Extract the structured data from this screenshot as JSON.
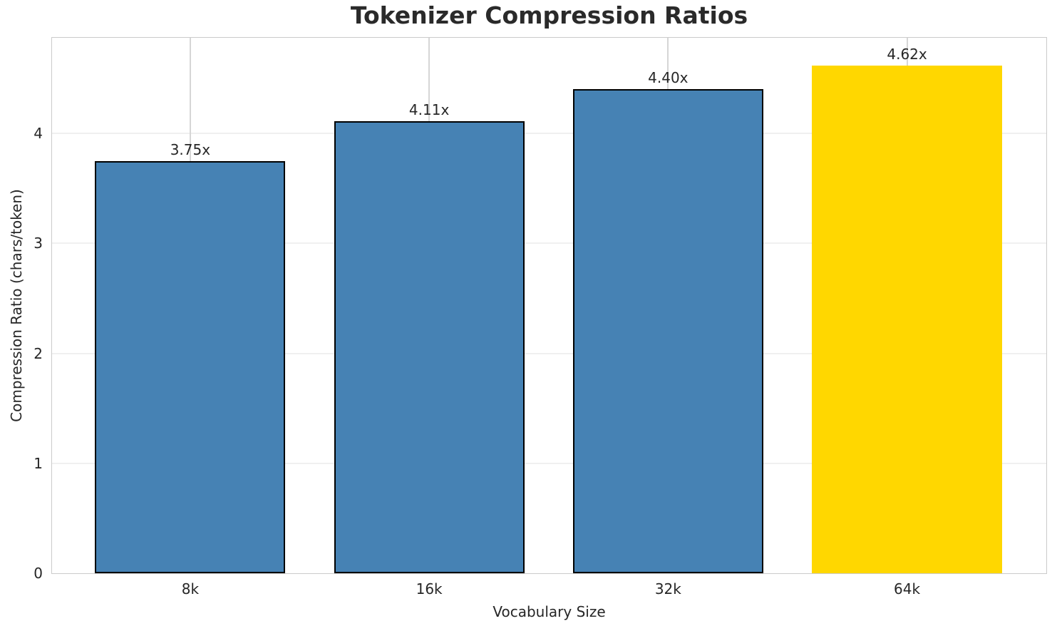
{
  "chart_data": {
    "type": "bar",
    "title": "Tokenizer Compression Ratios",
    "xlabel": "Vocabulary Size",
    "ylabel": "Compression Ratio (chars/token)",
    "categories": [
      "8k",
      "16k",
      "32k",
      "64k"
    ],
    "values": [
      3.75,
      4.11,
      4.4,
      4.62
    ],
    "bar_labels": [
      "3.75x",
      "4.11x",
      "4.40x",
      "4.62x"
    ],
    "yticks": [
      0,
      1,
      2,
      3,
      4
    ],
    "ylim": [
      0,
      4.87
    ],
    "grid": true,
    "legend": "none",
    "bar_colors": [
      "#4682B4",
      "#4682B4",
      "#4682B4",
      "#FFD700"
    ],
    "bar_edge_colors": [
      "#000000",
      "#000000",
      "#000000",
      "none"
    ],
    "highlight_index": 3
  }
}
